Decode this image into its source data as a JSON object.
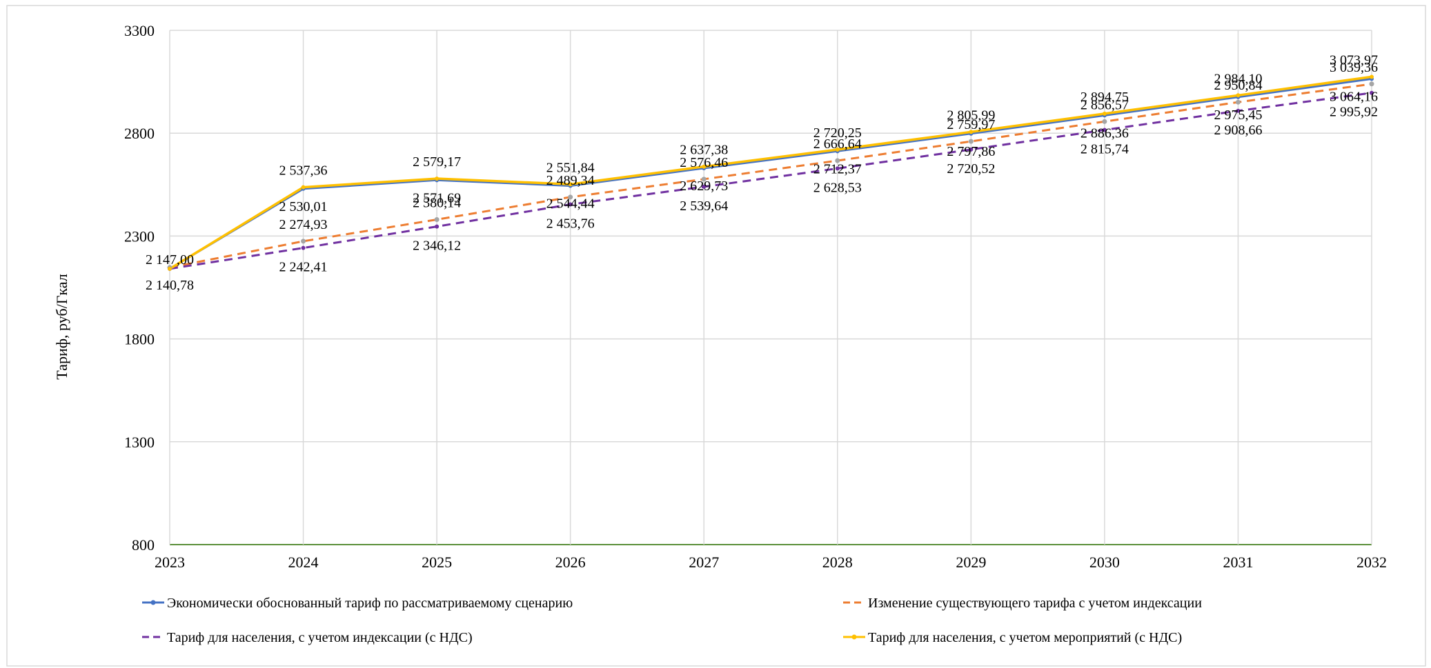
{
  "chart_data": {
    "type": "line",
    "title": "",
    "xlabel": "",
    "ylabel": "Тариф, руб/Гкал",
    "ylim": [
      800,
      3300
    ],
    "y_ticks": [
      "800",
      "1300",
      "1800",
      "2300",
      "2800",
      "3300"
    ],
    "grid": true,
    "legend_position": "bottom",
    "categories": [
      "2023",
      "2024",
      "2025",
      "2026",
      "2027",
      "2028",
      "2029",
      "2030",
      "2031",
      "2032"
    ],
    "series": [
      {
        "name": "Экономически обоснованный тариф по рассматриваемому сценарию",
        "color": "#4472c4",
        "dash": "solid",
        "values": [
          2140.78,
          2530.01,
          2571.69,
          2544.44,
          2629.73,
          2712.37,
          2797.86,
          2886.36,
          2975.45,
          3064.16
        ],
        "labels": [
          "2 140,78",
          "2 530,01",
          "2 571,69",
          "2 544,44",
          "2 629,73",
          "2 712,37",
          "2 797,86",
          "2 886,36",
          "2 975,45",
          "3 064,16"
        ]
      },
      {
        "name": "Изменение существующего тарифа с учетом индексации",
        "color": "#ed7d31",
        "dash": "dashed",
        "values": [
          2147.0,
          2274.93,
          2380.14,
          2489.34,
          2576.46,
          2666.64,
          2759.97,
          2856.57,
          2950.84,
          3039.36
        ],
        "labels": [
          "2 147,00",
          "2 274,93",
          "2 380,14",
          "2 489,34",
          "2 576,46",
          "2 666,64",
          "2 759,97",
          "2 856,57",
          "2 950,84",
          "3 039,36"
        ]
      },
      {
        "name": "Тариф для населения, с учетом индексации (с НДС)",
        "color": "#7030a0",
        "dash": "dashed",
        "values": [
          2140.78,
          2242.41,
          2346.12,
          2453.76,
          2539.64,
          2628.53,
          2720.52,
          2815.74,
          2908.66,
          2995.92
        ],
        "labels": [
          "",
          "2 242,41",
          "2 346,12",
          "2 453,76",
          "2 539,64",
          "2 628,53",
          "2 720,52",
          "2 815,74",
          "2 908,66",
          "2 995,92"
        ]
      },
      {
        "name": "Тариф для населения, с учетом мероприятий (с НДС)",
        "color": "#ffc000",
        "dash": "solid",
        "values": [
          2140.78,
          2537.36,
          2579.17,
          2551.84,
          2637.38,
          2720.25,
          2805.99,
          2894.75,
          2984.1,
          3073.97
        ],
        "labels": [
          "",
          "2 537,36",
          "2 579,17",
          "2 551,84",
          "2 637,38",
          "2 720,25",
          "2 805,99",
          "2 894,75",
          "2 984,10",
          "3 073,97"
        ]
      }
    ]
  }
}
